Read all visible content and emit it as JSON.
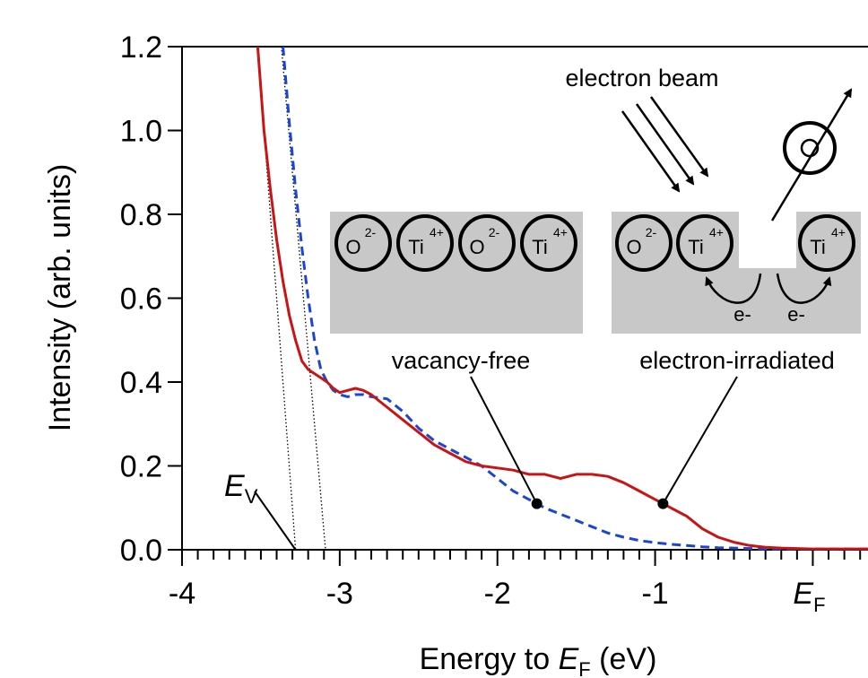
{
  "chart_data": {
    "type": "line",
    "xlabel": "Energy to E_F (eV)",
    "xlabel_parts": {
      "prefix": "Energy to ",
      "italic": "E",
      "sub": "F",
      "suffix": " (eV)"
    },
    "ylabel": "Intensity (arb. units)",
    "xlim": [
      -4,
      0.35
    ],
    "ylim": [
      0,
      1.2
    ],
    "x_ticks": [
      {
        "value": -4,
        "label": "-4"
      },
      {
        "value": -3,
        "label": "-3"
      },
      {
        "value": -2,
        "label": "-2"
      },
      {
        "value": -1,
        "label": "-1"
      },
      {
        "value": 0,
        "label": "E",
        "sub": "F"
      }
    ],
    "y_ticks": [
      {
        "value": 0.0,
        "label": "0.0"
      },
      {
        "value": 0.2,
        "label": "0.2"
      },
      {
        "value": 0.4,
        "label": "0.4"
      },
      {
        "value": 0.6,
        "label": "0.6"
      },
      {
        "value": 0.8,
        "label": "0.8"
      },
      {
        "value": 1.0,
        "label": "1.0"
      },
      {
        "value": 1.2,
        "label": "1.2"
      }
    ],
    "series": [
      {
        "name": "electron-irradiated",
        "color": "#c81414",
        "style": "solid",
        "x": [
          -3.52,
          -3.48,
          -3.44,
          -3.4,
          -3.36,
          -3.32,
          -3.28,
          -3.24,
          -3.2,
          -3.16,
          -3.12,
          -3.08,
          -3.04,
          -3.0,
          -2.95,
          -2.9,
          -2.85,
          -2.8,
          -2.7,
          -2.6,
          -2.5,
          -2.4,
          -2.3,
          -2.2,
          -2.1,
          -2.0,
          -1.9,
          -1.8,
          -1.7,
          -1.6,
          -1.5,
          -1.4,
          -1.3,
          -1.2,
          -1.1,
          -1.0,
          -0.95,
          -0.9,
          -0.8,
          -0.7,
          -0.6,
          -0.5,
          -0.4,
          -0.3,
          -0.2,
          -0.1,
          0.0,
          0.1,
          0.2,
          0.3,
          0.35
        ],
        "y": [
          1.2,
          1.0,
          0.86,
          0.74,
          0.64,
          0.56,
          0.5,
          0.45,
          0.43,
          0.42,
          0.41,
          0.4,
          0.385,
          0.375,
          0.38,
          0.385,
          0.38,
          0.37,
          0.34,
          0.31,
          0.28,
          0.25,
          0.23,
          0.21,
          0.2,
          0.195,
          0.19,
          0.18,
          0.18,
          0.17,
          0.18,
          0.18,
          0.175,
          0.16,
          0.14,
          0.12,
          0.11,
          0.1,
          0.08,
          0.05,
          0.03,
          0.018,
          0.01,
          0.006,
          0.004,
          0.003,
          0.002,
          0.002,
          0.002,
          0.002,
          0.002
        ]
      },
      {
        "name": "vacancy-free",
        "color": "#1c46d2",
        "style": "dashed",
        "x": [
          -3.36,
          -3.32,
          -3.28,
          -3.24,
          -3.2,
          -3.16,
          -3.12,
          -3.08,
          -3.04,
          -3.0,
          -2.95,
          -2.9,
          -2.85,
          -2.8,
          -2.7,
          -2.6,
          -2.5,
          -2.4,
          -2.3,
          -2.2,
          -2.1,
          -2.0,
          -1.9,
          -1.8,
          -1.75,
          -1.7,
          -1.6,
          -1.5,
          -1.4,
          -1.3,
          -1.2,
          -1.1,
          -1.0,
          -0.9,
          -0.8,
          -0.7,
          -0.6,
          -0.5,
          -0.4,
          -0.3,
          -0.2,
          -0.1,
          0.0,
          0.1,
          0.2,
          0.3,
          0.35
        ],
        "y": [
          1.2,
          1.02,
          0.86,
          0.72,
          0.6,
          0.5,
          0.43,
          0.4,
          0.38,
          0.37,
          0.365,
          0.37,
          0.37,
          0.365,
          0.36,
          0.33,
          0.29,
          0.26,
          0.24,
          0.22,
          0.2,
          0.17,
          0.14,
          0.12,
          0.11,
          0.1,
          0.085,
          0.07,
          0.055,
          0.04,
          0.03,
          0.022,
          0.017,
          0.013,
          0.01,
          0.007,
          0.005,
          0.004,
          0.003,
          0.002,
          0.002,
          0.002,
          0.002,
          0.002,
          0.002,
          0.002,
          0.002
        ]
      }
    ],
    "guide_lines": [
      {
        "x": [
          -3.52,
          -3.28
        ],
        "y": [
          1.2,
          0.0
        ]
      },
      {
        "x": [
          -3.37,
          -3.09
        ],
        "y": [
          1.2,
          0.0
        ]
      }
    ],
    "markers": [
      {
        "series": "vacancy-free",
        "x": -1.75,
        "y": 0.11,
        "label_ref": "vacancy_free"
      },
      {
        "series": "electron-irradiated",
        "x": -0.95,
        "y": 0.11,
        "label_ref": "electron_irradiated"
      }
    ],
    "ev_marker": {
      "italic": "E",
      "sub": "V",
      "x": -3.28,
      "y": 0.0
    },
    "annotations": {
      "electron_beam": "electron beam",
      "vacancy_free": "vacancy-free",
      "electron_irradiated": "electron-irradiated",
      "electron_label": "e-",
      "ions": {
        "oxygen": {
          "symbol": "O",
          "charge": "2-"
        },
        "titanium": {
          "symbol": "Ti",
          "charge": "4+"
        },
        "ejected": {
          "symbol": "O"
        }
      }
    },
    "colors": {
      "block_fill": "#c8c8c8",
      "axis": "#000000"
    }
  }
}
